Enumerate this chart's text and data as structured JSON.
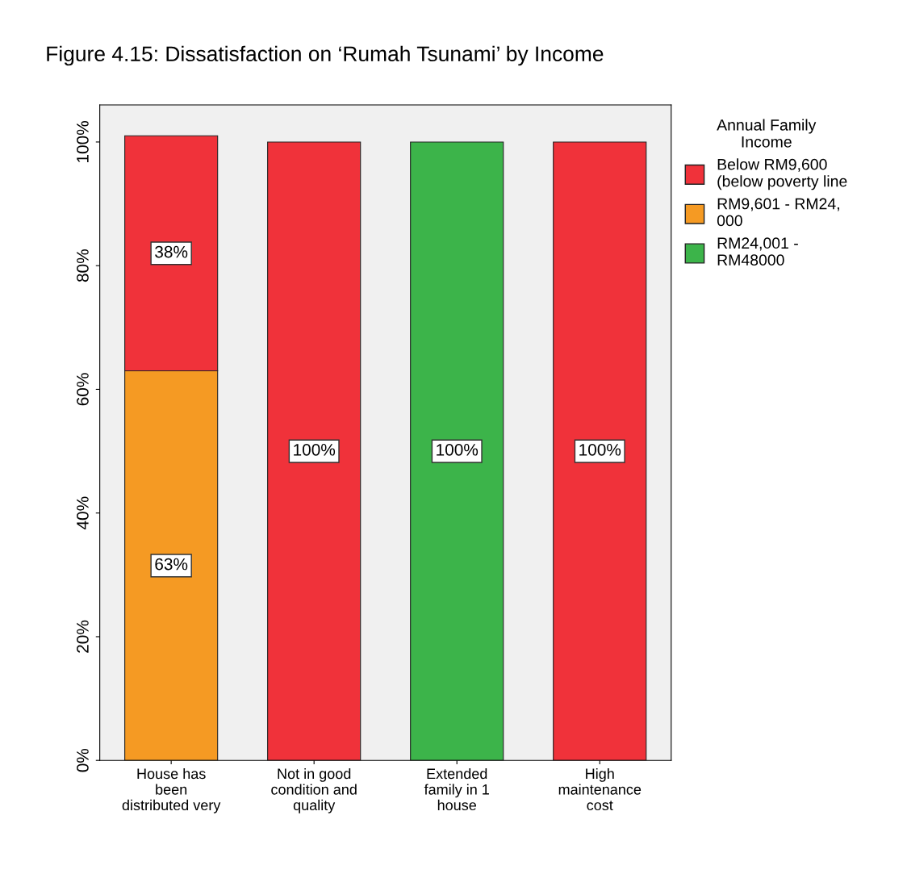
{
  "chart_data": {
    "type": "bar",
    "stacked": true,
    "title": "Figure 4.15: Dissatisfaction on ‘Rumah Tsunami’ by Income",
    "categories": [
      "House has\nbeen\ndistributed very",
      "Not in good\ncondition and\nquality",
      "Extended\nfamily in 1\nhouse",
      "High\nmaintenance\ncost"
    ],
    "series": [
      {
        "name": "RM24,001 -\nRM48000",
        "color": "#3cb44a",
        "values": [
          null,
          null,
          100,
          null
        ],
        "value_labels": [
          null,
          null,
          "100%",
          null
        ]
      },
      {
        "name": "RM9,601 - RM24,\n000",
        "color": "#f59a23",
        "values": [
          63,
          null,
          null,
          null
        ],
        "value_labels": [
          "63%",
          null,
          null,
          null
        ]
      },
      {
        "name": "Below RM9,600\n(below poverty line",
        "color": "#f0323a",
        "values": [
          38,
          100,
          null,
          100
        ],
        "value_labels": [
          "38%",
          "100%",
          null,
          "100%"
        ]
      }
    ],
    "legend_title": "Annual Family\nIncome",
    "legend": "right",
    "ylim": [
      0,
      106
    ],
    "yticks": [
      {
        "value": 0,
        "label": "0%"
      },
      {
        "value": 20,
        "label": "20%"
      },
      {
        "value": 40,
        "label": "40%"
      },
      {
        "value": 60,
        "label": "60%"
      },
      {
        "value": 80,
        "label": "80%"
      },
      {
        "value": 100,
        "label": "100%"
      }
    ],
    "grid": false
  }
}
